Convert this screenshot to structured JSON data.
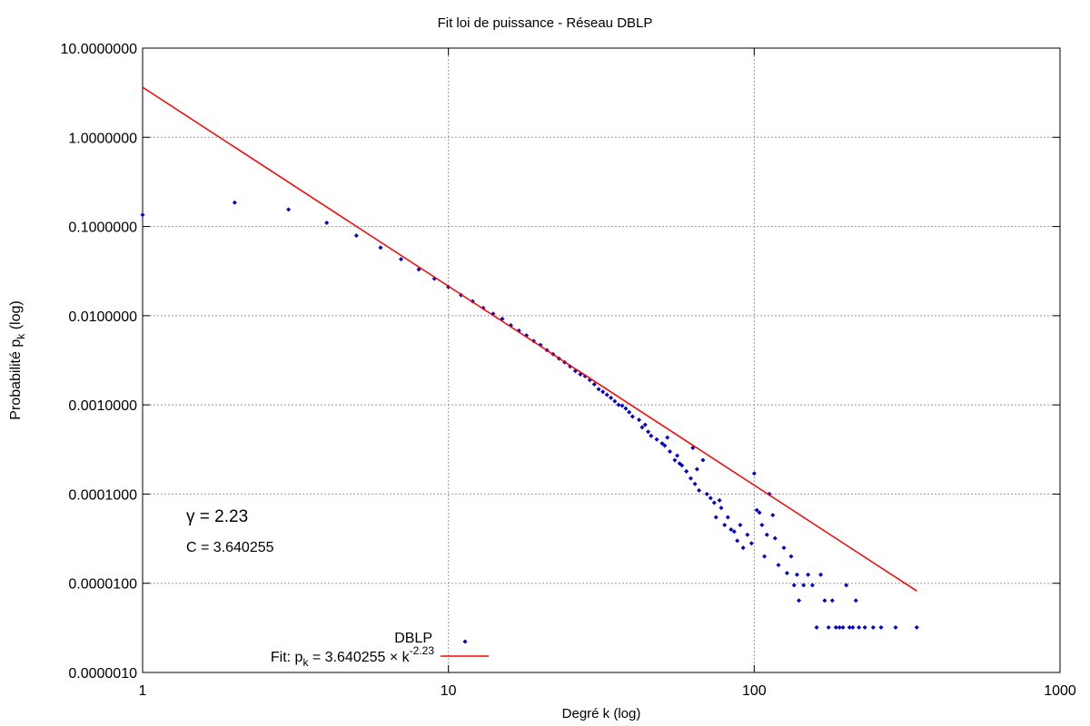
{
  "chart_data": {
    "type": "scatter",
    "title": "Fit loi de puissance - Réseau DBLP",
    "xlabel": "Degré k (log)",
    "ylabel": {
      "text": "Probabilité p",
      "sub": "k",
      "after": " (log)"
    },
    "xscale": "log",
    "yscale": "log",
    "grid": true,
    "legend": "bottom",
    "xlim": [
      1,
      1000
    ],
    "xticks": [
      1,
      10,
      100,
      1000
    ],
    "ylim": [
      1e-06,
      10
    ],
    "yticks": [
      {
        "value": 1e-06,
        "label": "0.0000010"
      },
      {
        "value": 1e-05,
        "label": "0.0000100"
      },
      {
        "value": 0.0001,
        "label": "0.0001000"
      },
      {
        "value": 0.001,
        "label": "0.0010000"
      },
      {
        "value": 0.01,
        "label": "0.0100000"
      },
      {
        "value": 0.1,
        "label": "0.1000000"
      },
      {
        "value": 1,
        "label": "1.0000000"
      },
      {
        "value": 10,
        "label": "10.0000000"
      }
    ],
    "annotations": [
      "γ = 2.23",
      "C = 3.640255"
    ],
    "series": [
      {
        "name": "DBLP",
        "type": "scatter",
        "color": "#0000cc",
        "x": [
          1,
          2,
          3,
          4,
          5,
          6,
          7,
          8,
          9,
          10,
          11,
          12,
          13,
          14,
          15,
          16,
          17,
          18,
          19,
          20,
          21,
          22,
          23,
          24,
          25,
          26,
          27,
          28,
          29,
          30,
          31,
          32,
          33,
          34,
          35,
          36,
          37,
          38,
          39,
          40,
          42,
          43,
          44,
          45,
          46,
          48,
          50,
          51,
          52,
          53,
          55,
          56,
          57,
          58,
          60,
          62,
          63,
          64,
          65,
          66,
          68,
          70,
          72,
          74,
          75,
          77,
          78,
          80,
          82,
          84,
          86,
          88,
          90,
          92,
          95,
          98,
          100,
          102,
          104,
          106,
          108,
          110,
          112,
          115,
          117,
          120,
          125,
          128,
          132,
          135,
          138,
          140,
          145,
          150,
          155,
          160,
          165,
          170,
          175,
          180,
          185,
          190,
          195,
          200,
          205,
          210,
          215,
          220,
          230,
          245,
          260,
          290,
          340
        ],
        "values": [
          0.135,
          0.185,
          0.155,
          0.11,
          0.079,
          0.058,
          0.043,
          0.033,
          0.026,
          0.021,
          0.017,
          0.0145,
          0.0122,
          0.0105,
          0.0092,
          0.0078,
          0.0068,
          0.006,
          0.0052,
          0.0047,
          0.0041,
          0.0037,
          0.0033,
          0.003,
          0.0027,
          0.0024,
          0.0022,
          0.0021,
          0.0019,
          0.0017,
          0.0015,
          0.0014,
          0.0013,
          0.0012,
          0.0011,
          0.001,
          0.00098,
          0.00091,
          0.00083,
          0.00074,
          0.00068,
          0.00056,
          0.0006,
          0.0005,
          0.00045,
          0.00041,
          0.00037,
          0.00035,
          0.00043,
          0.0003,
          0.00024,
          0.00027,
          0.00022,
          0.00021,
          0.00018,
          0.00015,
          0.00033,
          0.00013,
          0.00019,
          0.00011,
          0.00024,
          0.0001,
          9e-05,
          8e-05,
          5.5e-05,
          8.5e-05,
          7e-05,
          4.5e-05,
          5.5e-05,
          4e-05,
          3.8e-05,
          3e-05,
          4.5e-05,
          2.5e-05,
          3.5e-05,
          2.8e-05,
          0.00017,
          6.6e-05,
          6.2e-05,
          4.5e-05,
          2e-05,
          3.5e-05,
          0.0001,
          5.8e-05,
          3.2e-05,
          1.6e-05,
          2.5e-05,
          1.3e-05,
          2e-05,
          9.5e-06,
          1.25e-05,
          6.4e-06,
          9.5e-06,
          1.25e-05,
          9.5e-06,
          3.2e-06,
          1.25e-05,
          6.4e-06,
          3.2e-06,
          6.4e-06,
          3.2e-06,
          3.2e-06,
          3.2e-06,
          9.5e-06,
          3.2e-06,
          3.2e-06,
          6.4e-06,
          3.2e-06,
          3.2e-06,
          3.2e-06,
          3.2e-06,
          3.2e-06,
          3.2e-06
        ]
      },
      {
        "name": {
          "text": "Fit: p",
          "sub": "k",
          "mid": " = 3.640255 × k",
          "sup": "-2.23"
        },
        "type": "line",
        "color": "#ff0000",
        "x": [
          1,
          340
        ],
        "values": [
          3.640255,
          8.2e-06
        ]
      }
    ]
  }
}
